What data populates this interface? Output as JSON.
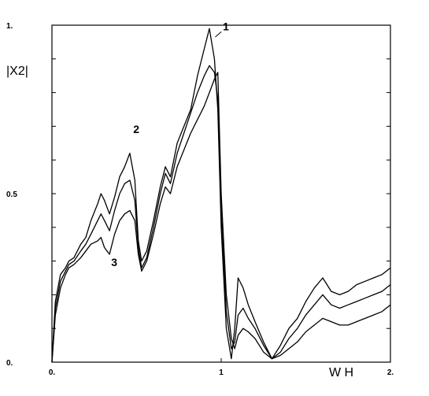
{
  "chart_data": {
    "type": "line",
    "xlabel": "W H",
    "ylabel": "|X2|",
    "xlim": [
      0,
      2
    ],
    "ylim": [
      0,
      1
    ],
    "x_ticks": [
      {
        "value": 0,
        "label": "0."
      },
      {
        "value": 1,
        "label": "1"
      },
      {
        "value": 2,
        "label": "2."
      }
    ],
    "y_ticks": [
      {
        "value": 0,
        "label": "0."
      },
      {
        "value": 0.5,
        "label": "0.5"
      },
      {
        "value": 1,
        "label": "1."
      }
    ],
    "minor_y_ticks": [
      0.1,
      0.2,
      0.3,
      0.4,
      0.6,
      0.7,
      0.8,
      0.9
    ],
    "grid": false,
    "series": [
      {
        "name": "1",
        "x": [
          0.0,
          0.02,
          0.05,
          0.08,
          0.1,
          0.13,
          0.17,
          0.2,
          0.23,
          0.27,
          0.29,
          0.31,
          0.34,
          0.37,
          0.4,
          0.43,
          0.46,
          0.49,
          0.51,
          0.53,
          0.56,
          0.6,
          0.64,
          0.67,
          0.7,
          0.74,
          0.78,
          0.82,
          0.86,
          0.9,
          0.93,
          0.96,
          0.98,
          1.0,
          1.03,
          1.06,
          1.08,
          1.1,
          1.13,
          1.16,
          1.2,
          1.25,
          1.3,
          1.35,
          1.4,
          1.45,
          1.5,
          1.55,
          1.6,
          1.65,
          1.7,
          1.75,
          1.8,
          1.85,
          1.9,
          1.95,
          2.0
        ],
        "y": [
          0.0,
          0.18,
          0.26,
          0.28,
          0.3,
          0.31,
          0.35,
          0.37,
          0.42,
          0.47,
          0.5,
          0.48,
          0.44,
          0.49,
          0.55,
          0.58,
          0.62,
          0.54,
          0.36,
          0.3,
          0.33,
          0.42,
          0.52,
          0.58,
          0.55,
          0.65,
          0.7,
          0.75,
          0.85,
          0.93,
          0.99,
          0.9,
          0.75,
          0.4,
          0.1,
          0.01,
          0.1,
          0.25,
          0.22,
          0.17,
          0.12,
          0.06,
          0.01,
          0.05,
          0.1,
          0.13,
          0.18,
          0.22,
          0.25,
          0.21,
          0.2,
          0.21,
          0.23,
          0.24,
          0.25,
          0.26,
          0.28
        ]
      },
      {
        "name": "2",
        "x": [
          0.0,
          0.02,
          0.05,
          0.08,
          0.1,
          0.13,
          0.17,
          0.2,
          0.23,
          0.27,
          0.29,
          0.31,
          0.34,
          0.37,
          0.4,
          0.43,
          0.46,
          0.49,
          0.51,
          0.53,
          0.56,
          0.6,
          0.64,
          0.67,
          0.7,
          0.74,
          0.78,
          0.82,
          0.86,
          0.9,
          0.93,
          0.96,
          0.98,
          1.0,
          1.03,
          1.06,
          1.08,
          1.1,
          1.13,
          1.16,
          1.2,
          1.25,
          1.3,
          1.35,
          1.4,
          1.45,
          1.5,
          1.55,
          1.6,
          1.65,
          1.7,
          1.75,
          1.8,
          1.85,
          1.9,
          1.95,
          2.0
        ],
        "y": [
          0.0,
          0.16,
          0.24,
          0.27,
          0.29,
          0.3,
          0.33,
          0.35,
          0.38,
          0.42,
          0.44,
          0.42,
          0.39,
          0.45,
          0.5,
          0.53,
          0.54,
          0.48,
          0.34,
          0.28,
          0.31,
          0.4,
          0.5,
          0.56,
          0.53,
          0.62,
          0.68,
          0.74,
          0.8,
          0.85,
          0.88,
          0.86,
          0.78,
          0.45,
          0.15,
          0.04,
          0.06,
          0.14,
          0.16,
          0.13,
          0.1,
          0.05,
          0.01,
          0.03,
          0.07,
          0.1,
          0.14,
          0.17,
          0.2,
          0.17,
          0.16,
          0.17,
          0.18,
          0.19,
          0.2,
          0.21,
          0.23
        ]
      },
      {
        "name": "3",
        "x": [
          0.0,
          0.02,
          0.05,
          0.08,
          0.1,
          0.13,
          0.17,
          0.2,
          0.23,
          0.27,
          0.29,
          0.31,
          0.34,
          0.37,
          0.4,
          0.43,
          0.46,
          0.49,
          0.51,
          0.53,
          0.56,
          0.6,
          0.64,
          0.67,
          0.7,
          0.74,
          0.78,
          0.82,
          0.86,
          0.9,
          0.93,
          0.96,
          0.98,
          1.0,
          1.03,
          1.06,
          1.08,
          1.1,
          1.13,
          1.16,
          1.2,
          1.25,
          1.3,
          1.35,
          1.4,
          1.45,
          1.5,
          1.55,
          1.6,
          1.65,
          1.7,
          1.75,
          1.8,
          1.85,
          1.9,
          1.95,
          2.0
        ],
        "y": [
          0.0,
          0.14,
          0.22,
          0.26,
          0.28,
          0.29,
          0.31,
          0.33,
          0.35,
          0.36,
          0.37,
          0.34,
          0.32,
          0.38,
          0.42,
          0.44,
          0.45,
          0.42,
          0.32,
          0.27,
          0.3,
          0.38,
          0.47,
          0.52,
          0.5,
          0.58,
          0.63,
          0.68,
          0.72,
          0.76,
          0.8,
          0.84,
          0.86,
          0.5,
          0.2,
          0.07,
          0.04,
          0.08,
          0.1,
          0.09,
          0.07,
          0.03,
          0.01,
          0.02,
          0.04,
          0.06,
          0.09,
          0.11,
          0.13,
          0.12,
          0.11,
          0.11,
          0.12,
          0.13,
          0.14,
          0.15,
          0.17
        ]
      }
    ],
    "curve_labels": [
      {
        "text": "1",
        "x": 1.01,
        "y": 0.985,
        "leader_to": [
          0.965,
          0.965
        ]
      },
      {
        "text": "2",
        "x": 0.48,
        "y": 0.68
      },
      {
        "text": "3",
        "x": 0.35,
        "y": 0.285
      }
    ]
  }
}
